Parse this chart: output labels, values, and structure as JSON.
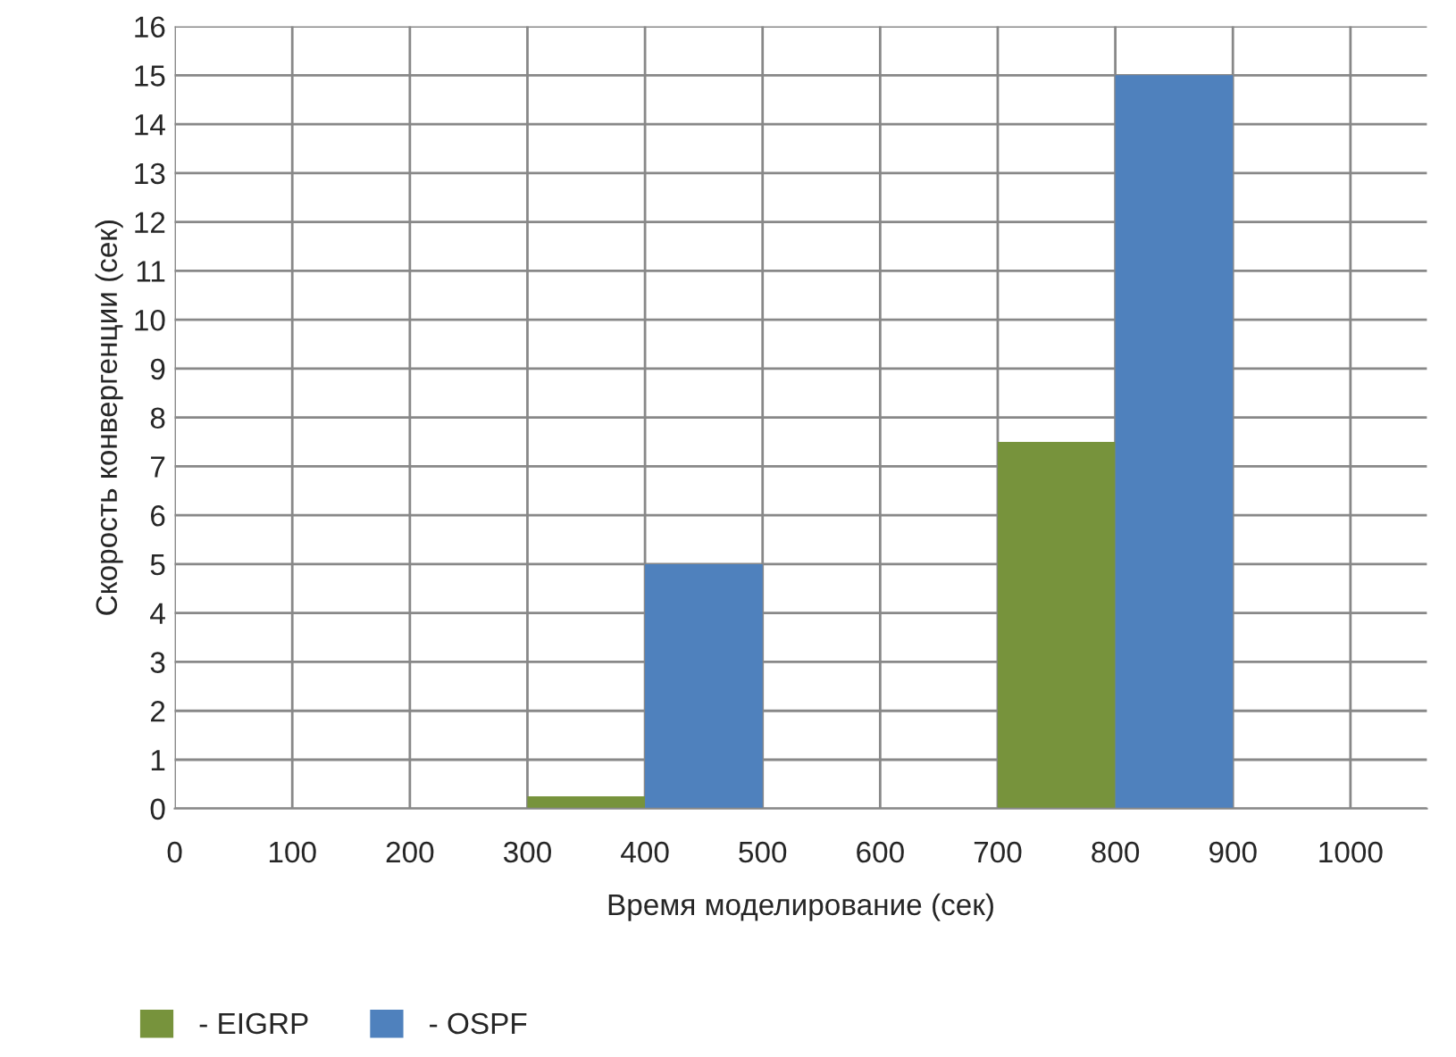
{
  "chart_data": {
    "type": "histogram",
    "xlabel": "Время моделирование (сек)",
    "ylabel": "Скорость конвергенции (сек)",
    "bins": [
      0,
      100,
      200,
      300,
      400,
      500,
      600,
      700,
      800,
      900,
      1000
    ],
    "series": [
      {
        "name": "- EIGRP",
        "color": "#77933c",
        "values": [
          0,
          0,
          0,
          0.25,
          0,
          0,
          0,
          7.5,
          0,
          0
        ]
      },
      {
        "name": "- OSPF",
        "color": "#4f81bd",
        "values": [
          0,
          0,
          0,
          0,
          5,
          0,
          0,
          0,
          15,
          0
        ]
      }
    ],
    "xlim": [
      0,
      1065
    ],
    "xticks": [
      0,
      100,
      200,
      300,
      400,
      500,
      600,
      700,
      800,
      900,
      1000
    ],
    "ylim": [
      0,
      16
    ],
    "yticks": [
      0,
      1,
      2,
      3,
      4,
      5,
      6,
      7,
      8,
      9,
      10,
      11,
      12,
      13,
      14,
      15,
      16
    ],
    "grid": true,
    "legend": "bottom left"
  }
}
